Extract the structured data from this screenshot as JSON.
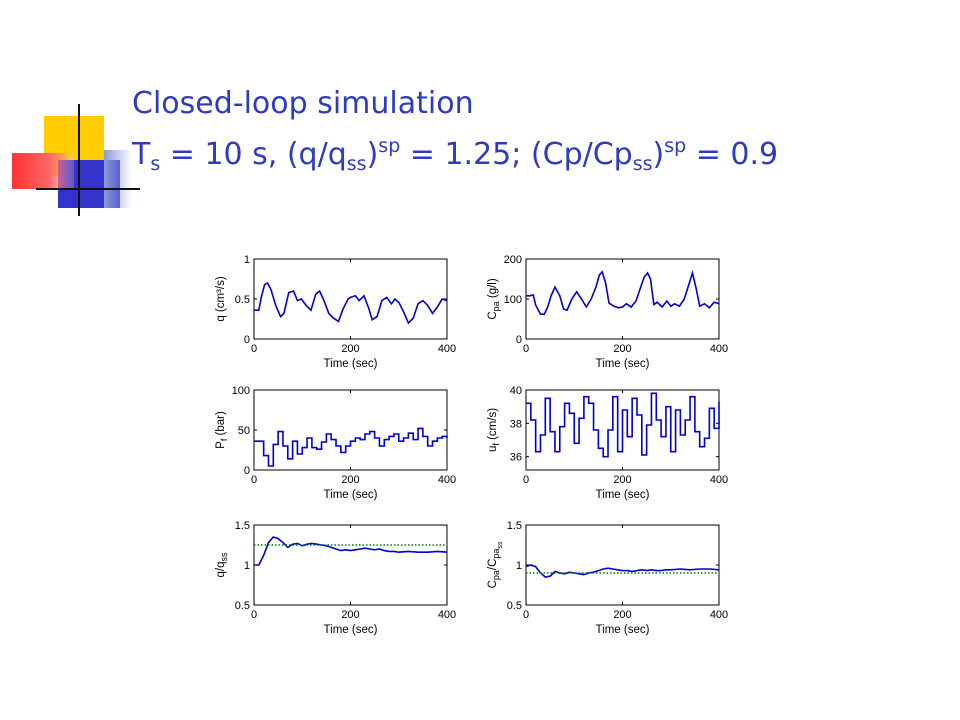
{
  "slide": {
    "title_line1": "Closed-loop simulation",
    "title_line2": {
      "t": "T",
      "t_sub": "s",
      "eq1": " = 10 s, (q/q",
      "ss1": "ss",
      "close1": ")",
      "sp1": "sp",
      "eq2": " = 1.25; (Cp/Cp",
      "ss2": "ss",
      "close2": ")",
      "sp2": "sp",
      "eq3": " = 0.9"
    },
    "accent_colors": {
      "yellow": "#ffcc00",
      "blue": "#3333cc",
      "red": "#ff3333",
      "title": "#2e3bbd"
    }
  },
  "chart_data": [
    {
      "type": "line",
      "id": "q",
      "ylabel": "q (cm³/s)",
      "xlabel": "Time (sec)",
      "xlim": [
        0,
        400
      ],
      "ylim": [
        0,
        1
      ],
      "xticks": [
        "0",
        "200",
        "400"
      ],
      "yticks": [
        "0",
        "0.5",
        "1"
      ],
      "series": [
        {
          "color": "#0000cc",
          "style": "solid",
          "x": [
            0,
            10,
            15,
            22,
            28,
            35,
            45,
            55,
            62,
            72,
            82,
            90,
            98,
            108,
            118,
            128,
            136,
            145,
            155,
            165,
            175,
            185,
            195,
            200,
            210,
            218,
            228,
            238,
            245,
            255,
            265,
            275,
            285,
            292,
            300,
            310,
            320,
            330,
            340,
            350,
            360,
            370,
            380,
            390,
            400
          ],
          "y": [
            0.36,
            0.36,
            0.52,
            0.68,
            0.7,
            0.62,
            0.42,
            0.28,
            0.32,
            0.58,
            0.6,
            0.48,
            0.5,
            0.42,
            0.36,
            0.56,
            0.6,
            0.48,
            0.32,
            0.26,
            0.22,
            0.38,
            0.5,
            0.52,
            0.54,
            0.48,
            0.54,
            0.38,
            0.24,
            0.28,
            0.48,
            0.52,
            0.44,
            0.5,
            0.46,
            0.34,
            0.2,
            0.26,
            0.44,
            0.48,
            0.42,
            0.32,
            0.4,
            0.5,
            0.48
          ]
        }
      ]
    },
    {
      "type": "line",
      "id": "cpa",
      "ylabel": "C pa (g/l)",
      "xlabel": "Time (sec)",
      "xlim": [
        0,
        400
      ],
      "ylim": [
        0,
        200
      ],
      "xticks": [
        "0",
        "200",
        "400"
      ],
      "yticks": [
        "0",
        "100",
        "200"
      ],
      "series": [
        {
          "color": "#0000cc",
          "style": "solid",
          "x": [
            0,
            8,
            15,
            20,
            30,
            38,
            45,
            52,
            60,
            70,
            78,
            85,
            95,
            105,
            115,
            125,
            135,
            145,
            152,
            158,
            165,
            172,
            182,
            192,
            200,
            208,
            218,
            228,
            235,
            245,
            252,
            258,
            265,
            272,
            282,
            292,
            300,
            308,
            318,
            328,
            338,
            345,
            352,
            360,
            370,
            380,
            390,
            400
          ],
          "y": [
            108,
            108,
            110,
            85,
            62,
            62,
            80,
            108,
            130,
            108,
            75,
            72,
            100,
            118,
            100,
            80,
            100,
            130,
            160,
            168,
            140,
            90,
            82,
            78,
            80,
            88,
            80,
            95,
            120,
            155,
            165,
            150,
            86,
            92,
            80,
            95,
            82,
            88,
            82,
            100,
            138,
            165,
            130,
            82,
            88,
            78,
            92,
            88
          ]
        }
      ]
    },
    {
      "type": "line",
      "id": "pf",
      "ylabel": "P f (bar)",
      "xlabel": "Time (sec)",
      "xlim": [
        0,
        400
      ],
      "ylim": [
        0,
        100
      ],
      "xticks": [
        "0",
        "200",
        "400"
      ],
      "yticks": [
        "0",
        "50",
        "100"
      ],
      "series": [
        {
          "color": "#0000cc",
          "style": "step",
          "x": [
            0,
            20,
            30,
            40,
            50,
            60,
            70,
            80,
            90,
            100,
            110,
            120,
            130,
            140,
            150,
            160,
            170,
            180,
            190,
            200,
            210,
            220,
            230,
            240,
            250,
            260,
            270,
            280,
            290,
            300,
            310,
            320,
            330,
            340,
            350,
            360,
            370,
            380,
            390,
            400
          ],
          "y": [
            36,
            18,
            5,
            32,
            48,
            30,
            14,
            36,
            20,
            28,
            40,
            28,
            26,
            35,
            45,
            38,
            30,
            22,
            30,
            36,
            40,
            38,
            45,
            48,
            40,
            30,
            38,
            42,
            45,
            36,
            40,
            46,
            38,
            52,
            42,
            30,
            36,
            40,
            42,
            40
          ]
        }
      ]
    },
    {
      "type": "line",
      "id": "uf",
      "ylabel": "u f (cm/s)",
      "xlabel": "Time (sec)",
      "xlim": [
        0,
        400
      ],
      "ylim": [
        35.2,
        40
      ],
      "xticks": [
        "0",
        "200",
        "400"
      ],
      "yticks": [
        "36",
        "38",
        "40"
      ],
      "series": [
        {
          "color": "#0000cc",
          "style": "step",
          "x": [
            0,
            10,
            20,
            30,
            40,
            50,
            60,
            70,
            80,
            90,
            100,
            110,
            120,
            130,
            140,
            150,
            160,
            170,
            180,
            190,
            200,
            210,
            220,
            230,
            240,
            250,
            260,
            270,
            280,
            290,
            300,
            310,
            320,
            330,
            340,
            350,
            360,
            370,
            380,
            390,
            400
          ],
          "y": [
            39.2,
            38.2,
            36.3,
            37.3,
            39.5,
            37.5,
            36.3,
            37.8,
            39.2,
            38.6,
            36.8,
            38.3,
            39.6,
            39.2,
            37.6,
            36.5,
            36.0,
            37.6,
            39.6,
            36.3,
            38.8,
            37.2,
            39.5,
            38.5,
            36.1,
            37.9,
            39.8,
            38.2,
            37.2,
            39.0,
            36.3,
            38.8,
            37.3,
            38.2,
            39.6,
            37.5,
            36.6,
            37.1,
            38.9,
            37.7,
            39.3
          ]
        }
      ]
    },
    {
      "type": "line",
      "id": "qratio",
      "ylabel": "q/q ss",
      "xlabel": "Time (sec)",
      "xlim": [
        0,
        400
      ],
      "ylim": [
        0.5,
        1.5
      ],
      "xticks": [
        "0",
        "200",
        "400"
      ],
      "yticks": [
        "0.5",
        "1",
        "1.5"
      ],
      "series": [
        {
          "color": "#0000cc",
          "style": "solid",
          "x": [
            0,
            10,
            20,
            30,
            40,
            50,
            60,
            70,
            80,
            90,
            100,
            110,
            120,
            130,
            140,
            150,
            160,
            170,
            180,
            190,
            200,
            210,
            220,
            230,
            240,
            250,
            260,
            270,
            280,
            290,
            300,
            320,
            340,
            360,
            380,
            400
          ],
          "y": [
            1.0,
            1.0,
            1.12,
            1.28,
            1.35,
            1.33,
            1.28,
            1.22,
            1.26,
            1.27,
            1.24,
            1.26,
            1.27,
            1.26,
            1.25,
            1.24,
            1.22,
            1.2,
            1.18,
            1.19,
            1.18,
            1.19,
            1.2,
            1.21,
            1.2,
            1.19,
            1.2,
            1.18,
            1.17,
            1.17,
            1.16,
            1.17,
            1.16,
            1.16,
            1.17,
            1.16
          ]
        },
        {
          "color": "#008000",
          "style": "dotted",
          "x": [
            0,
            400
          ],
          "y": [
            1.25,
            1.25
          ]
        }
      ]
    },
    {
      "type": "line",
      "id": "cpratio",
      "ylabel": "C pa /C pa ss",
      "xlabel": "Time (sec)",
      "xlim": [
        0,
        400
      ],
      "ylim": [
        0.5,
        1.5
      ],
      "xticks": [
        "0",
        "200",
        "400"
      ],
      "yticks": [
        "0.5",
        "1",
        "1.5"
      ],
      "series": [
        {
          "color": "#0000cc",
          "style": "solid",
          "x": [
            0,
            10,
            20,
            30,
            40,
            50,
            60,
            70,
            80,
            90,
            100,
            110,
            120,
            130,
            140,
            150,
            160,
            170,
            180,
            190,
            200,
            210,
            220,
            230,
            240,
            250,
            260,
            270,
            280,
            290,
            300,
            320,
            340,
            360,
            380,
            400
          ],
          "y": [
            0.98,
            1.0,
            0.98,
            0.9,
            0.85,
            0.86,
            0.92,
            0.9,
            0.89,
            0.91,
            0.9,
            0.89,
            0.88,
            0.9,
            0.91,
            0.93,
            0.95,
            0.96,
            0.95,
            0.94,
            0.93,
            0.93,
            0.92,
            0.93,
            0.94,
            0.93,
            0.94,
            0.93,
            0.93,
            0.94,
            0.94,
            0.95,
            0.94,
            0.95,
            0.95,
            0.94
          ]
        },
        {
          "color": "#008000",
          "style": "dotted",
          "x": [
            0,
            400
          ],
          "y": [
            0.9,
            0.9
          ]
        }
      ]
    }
  ]
}
